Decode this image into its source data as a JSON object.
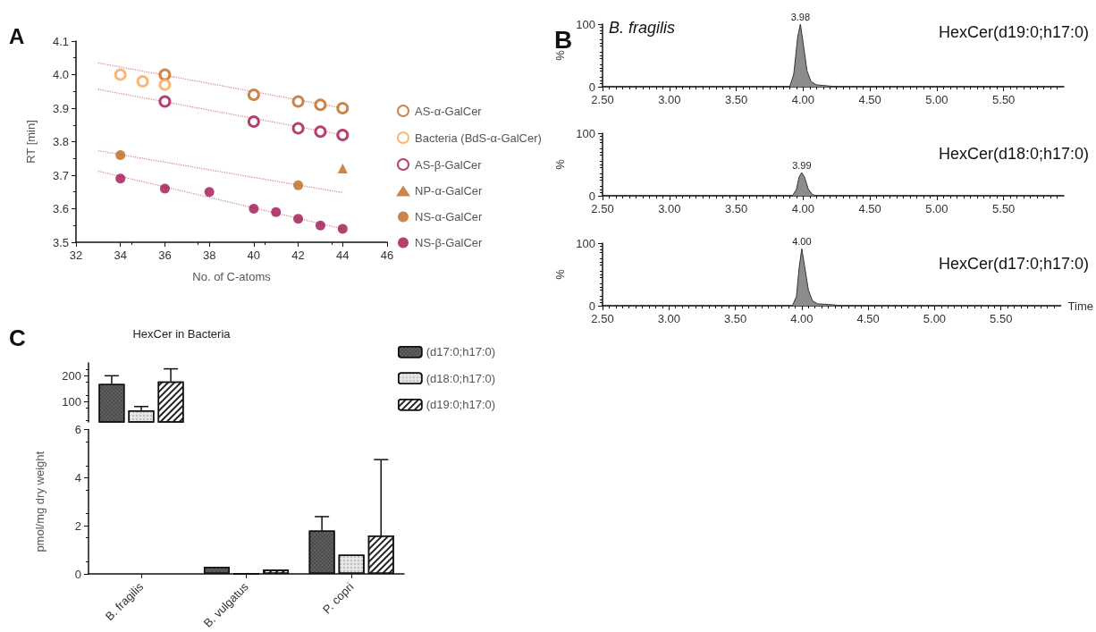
{
  "chart_data": [
    {
      "type": "scatter",
      "xlabel": "No. of C-atoms",
      "ylabel": "RT [min]",
      "annotations": [
        "A"
      ],
      "xlim": [
        32,
        46
      ],
      "xticks": [
        32,
        34,
        36,
        38,
        40,
        42,
        44,
        46
      ],
      "ylim": [
        3.5,
        4.1
      ],
      "yticks": [
        3.5,
        3.6,
        3.7,
        3.8,
        3.9,
        {
          "value": 4,
          "label": "4.0"
        },
        4.1
      ],
      "legend": "right",
      "grid": false,
      "series": [
        {
          "name": "AS-α-GalCer",
          "color": "#c0651a",
          "marker": "circle",
          "x": [
            36,
            40,
            42,
            43,
            44
          ],
          "values": [
            4.0,
            3.94,
            3.92,
            3.91,
            3.9
          ]
        },
        {
          "name": "Bacteria (BdS-α-GalCer)",
          "color": "#f5a555",
          "marker": "circle",
          "x": [
            34,
            35,
            36
          ],
          "values": [
            4.0,
            3.98,
            3.97
          ]
        },
        {
          "name": "AS-β-GalCer",
          "color": "#a3124f",
          "marker": "circle",
          "x": [
            36,
            40,
            42,
            43,
            44
          ],
          "values": [
            3.92,
            3.86,
            3.84,
            3.83,
            3.82
          ]
        },
        {
          "name": "NP-α-GalCer",
          "color": "#c0651a",
          "marker": "triangle",
          "x": [
            44
          ],
          "values": [
            3.72
          ]
        },
        {
          "name": "NS-α-GalCer",
          "color": "#c0651a",
          "marker": "circle",
          "x": [
            34,
            42
          ],
          "values": [
            3.76,
            3.67
          ]
        },
        {
          "name": "NS-β-GalCer",
          "color": "#a0114e",
          "marker": "circle",
          "x": [
            34,
            36,
            38,
            40,
            41,
            42,
            43,
            44
          ],
          "values": [
            3.69,
            3.66,
            3.65,
            3.6,
            3.59,
            3.57,
            3.55,
            3.54
          ]
        },
        {
          "type": "line",
          "color": "#d4908a",
          "marker": "none",
          "line_style": "dotted",
          "x": [
            33,
            44
          ],
          "values": [
            4.035,
            3.9
          ]
        },
        {
          "type": "line",
          "color": "#d4908a",
          "marker": "none",
          "line_style": "dotted",
          "x": [
            33,
            44
          ],
          "values": [
            3.956,
            3.82
          ]
        },
        {
          "type": "line",
          "color": "#d4908a",
          "marker": "none",
          "line_style": "dotted",
          "x": [
            33,
            44
          ],
          "values": [
            3.773,
            3.648
          ]
        },
        {
          "type": "line",
          "color": "#d4908a",
          "marker": "none",
          "line_style": "dotted",
          "x": [
            33,
            44
          ],
          "values": [
            3.712,
            3.54
          ]
        }
      ]
    },
    {
      "type": "area",
      "title": "HexCer(d19:0;h17:0)",
      "ylabel": "%",
      "annotations": [
        "B",
        "B. fragilis",
        {
          "text": "3.98",
          "x": 3.98,
          "y": 100
        }
      ],
      "xlim": [
        2.5,
        5.95
      ],
      "xticks": [
        {
          "value": 2.5,
          "label": "2.50"
        },
        {
          "value": 3,
          "label": "3.00"
        },
        {
          "value": 3.5,
          "label": "3.50"
        },
        {
          "value": 4,
          "label": "4.00"
        },
        {
          "value": 4.5,
          "label": "4.50"
        },
        {
          "value": 5,
          "label": "5.00"
        },
        {
          "value": 5.5,
          "label": "5.50"
        }
      ],
      "ylim": [
        0,
        100
      ],
      "yticks": [
        0,
        100
      ],
      "color": "#8c8c8c",
      "x": [
        2.5,
        3.9,
        3.93,
        3.96,
        3.98,
        4.0,
        4.03,
        4.06,
        4.1,
        4.15,
        4.2,
        4.25,
        5.95
      ],
      "values": [
        0,
        0,
        20,
        80,
        100,
        70,
        25,
        8,
        3,
        2,
        1,
        0,
        0
      ]
    },
    {
      "type": "area",
      "title": "HexCer(d18:0;h17:0)",
      "ylabel": "%",
      "annotations": [
        {
          "text": "3.99",
          "x": 3.99,
          "y": 37
        }
      ],
      "xlim": [
        2.5,
        5.95
      ],
      "xticks": [
        {
          "value": 2.5,
          "label": "2.50"
        },
        {
          "value": 3,
          "label": "3.00"
        },
        {
          "value": 3.5,
          "label": "3.50"
        },
        {
          "value": 4,
          "label": "4.00"
        },
        {
          "value": 4.5,
          "label": "4.50"
        },
        {
          "value": 5,
          "label": "5.00"
        },
        {
          "value": 5.5,
          "label": "5.50"
        }
      ],
      "ylim": [
        0,
        100
      ],
      "yticks": [
        0,
        100
      ],
      "color": "#8c8c8c",
      "x": [
        2.5,
        3.92,
        3.95,
        3.97,
        3.99,
        4.01,
        4.04,
        4.07,
        4.1,
        5.95
      ],
      "values": [
        0,
        0,
        10,
        30,
        37,
        30,
        10,
        2,
        0,
        0
      ]
    },
    {
      "type": "area",
      "title": "HexCer(d17:0;h17:0)",
      "xlabel": "Time",
      "ylabel": "%",
      "annotations": [
        {
          "text": "4.00",
          "x": 4.0,
          "y": 91
        }
      ],
      "xlim": [
        2.5,
        5.95
      ],
      "xticks": [
        {
          "value": 2.5,
          "label": "2.50"
        },
        {
          "value": 3,
          "label": "3.00"
        },
        {
          "value": 3.5,
          "label": "3.50"
        },
        {
          "value": 4,
          "label": "4.00"
        },
        {
          "value": 4.5,
          "label": "4.50"
        },
        {
          "value": 5,
          "label": "5.00"
        },
        {
          "value": 5.5,
          "label": "5.50"
        }
      ],
      "ylim": [
        0,
        100
      ],
      "yticks": [
        0,
        100
      ],
      "color": "#8c8c8c",
      "x": [
        2.5,
        3.93,
        3.96,
        3.98,
        4.0,
        4.02,
        4.05,
        4.08,
        4.12,
        4.2,
        4.26,
        4.27,
        5.95
      ],
      "values": [
        0,
        0,
        15,
        60,
        91,
        65,
        25,
        8,
        3,
        2,
        1,
        0,
        0
      ]
    },
    {
      "type": "bar",
      "title": "HexCer in Bacteria",
      "annotations": [
        "C"
      ],
      "categories": [
        null
      ],
      "ylim": [
        20,
        250
      ],
      "yticks": [
        100,
        200
      ],
      "tick_labels": "y",
      "legend": "top right",
      "series": [
        {
          "name": "(d17:0;h17:0)",
          "color": "#4a4a4a",
          "values": [
            168
          ],
          "errors": [
            [
              168,
              200
            ]
          ]
        },
        {
          "name": "(d18:0;h17:0)",
          "color": "#e6e6e6",
          "values": [
            65
          ],
          "errors": [
            [
              65,
              80
            ]
          ]
        },
        {
          "name": "(d19:0;h17:0)",
          "color": "#ffffff",
          "values": [
            178
          ],
          "errors": [
            [
              178,
              227
            ]
          ]
        }
      ]
    },
    {
      "type": "bar",
      "ylabel": "pmol/mg dry weight",
      "categories": [
        "B. fragilis",
        "B. vulgatus",
        "P. copri"
      ],
      "ylim": [
        0,
        6
      ],
      "yticks": [
        0,
        2,
        4,
        6
      ],
      "series": [
        {
          "color": "#4a4a4a",
          "values": [
            null,
            0.3,
            1.8
          ],
          "errors": [
            null,
            null,
            [
              1.8,
              2.38
            ]
          ]
        },
        {
          "color": "#e6e6e6",
          "values": [
            null,
            0,
            0.8
          ]
        },
        {
          "color": "#ffffff",
          "values": [
            null,
            0.18,
            1.6
          ],
          "errors": [
            null,
            null,
            [
              1.6,
              4.75
            ]
          ]
        }
      ]
    }
  ]
}
